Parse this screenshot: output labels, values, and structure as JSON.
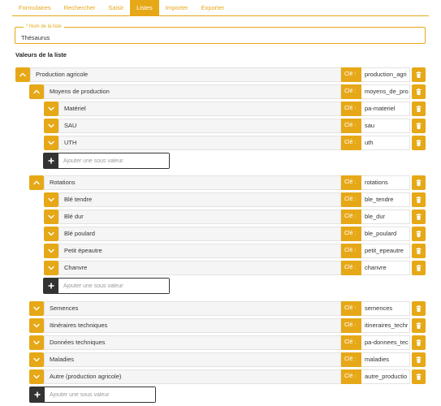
{
  "tabs": [
    "Formulaires",
    "Rechercher",
    "Saisir",
    "Listes",
    "Importer",
    "Exporter"
  ],
  "active_tab": "Listes",
  "name_field": {
    "label": "* Nom de la liste",
    "value": "Thésaurus"
  },
  "section_title": "Valeurs de la liste",
  "cle_label": "Clé :",
  "add_placeholder": "Ajouter une sous valeur",
  "root": {
    "label": "Production agricole",
    "key": "production_agri"
  },
  "moyens": {
    "label": "Moyens de production",
    "key": "moyens_de_pro"
  },
  "moyens_items": [
    {
      "label": "Matériel",
      "key": "pa-materiel"
    },
    {
      "label": "SAU",
      "key": "sau"
    },
    {
      "label": "UTH",
      "key": "uth"
    }
  ],
  "rotations": {
    "label": "Rotations",
    "key": "rotations"
  },
  "rotations_items": [
    {
      "label": "Blé tendre",
      "key": "ble_tendre"
    },
    {
      "label": "Blé dur",
      "key": "ble_dur"
    },
    {
      "label": "Blé poulard",
      "key": "ble_poulard"
    },
    {
      "label": "Petit épeautre",
      "key": "petit_epeautre"
    },
    {
      "label": "Chanvre",
      "key": "chanvre"
    }
  ],
  "other_items": [
    {
      "label": "Semences",
      "key": "semences"
    },
    {
      "label": "Itinéraires techniques",
      "key": "itineraires_techr"
    },
    {
      "label": "Données techniques",
      "key": "pa-donnees_tec"
    },
    {
      "label": "Maladies",
      "key": "maladies"
    },
    {
      "label": "Autre (production agricole)",
      "key": "autre_productio"
    }
  ],
  "colors": {
    "accent": "#e6a817",
    "dark": "#333333",
    "row_bg": "#f5f5f5"
  },
  "icons": {
    "expanded": "chevron-up-icon",
    "collapsed": "chevron-down-icon",
    "delete": "trash-icon",
    "add": "plus-icon"
  }
}
